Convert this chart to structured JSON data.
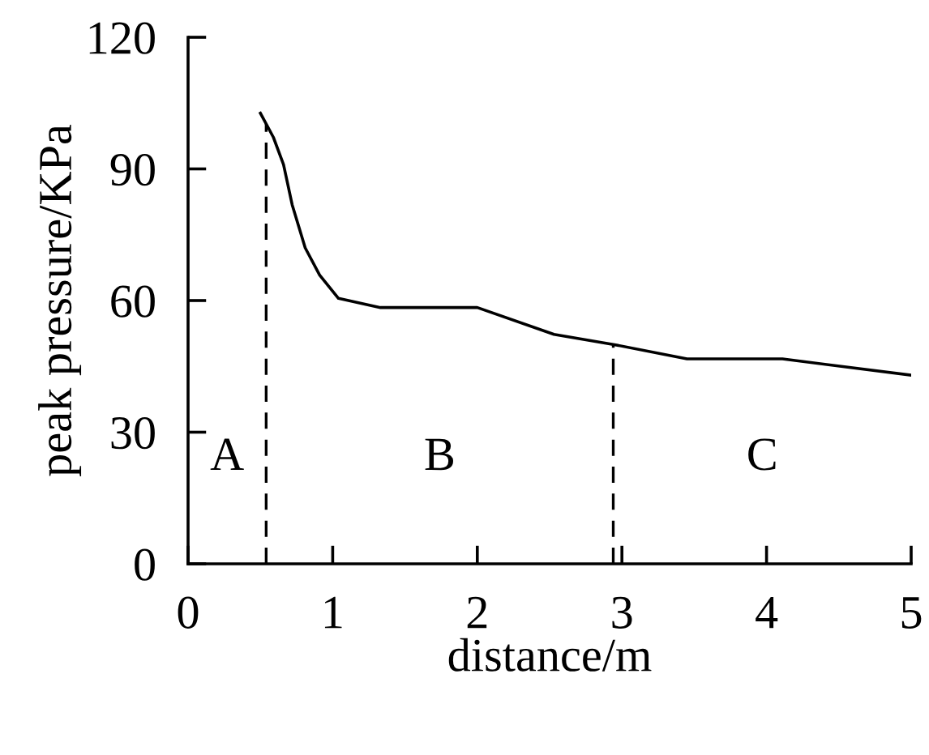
{
  "chart_data": {
    "type": "line",
    "xlabel": "distance/m",
    "ylabel": "peak pressure/KPa",
    "x": [
      0.5,
      0.59,
      0.66,
      0.72,
      0.81,
      0.91,
      1.04,
      1.33,
      2.0,
      2.53,
      2.94,
      3.45,
      4.11,
      5.0
    ],
    "series": [
      {
        "color": "#000000",
        "values": [
          102.7,
          97.2,
          91,
          81.8,
          72,
          65.8,
          60.5,
          58.4,
          58.4,
          52.3,
          50,
          46.7,
          46.7,
          43
        ]
      }
    ],
    "xlim": [
      0,
      5
    ],
    "xticks": [
      0,
      1,
      2,
      3,
      4,
      5
    ],
    "ylim": [
      0,
      120
    ],
    "yticks": [
      0,
      30,
      60,
      90,
      120
    ],
    "ref_lines": [
      {
        "axis": "x",
        "value": 0.54,
        "color": "#000000",
        "line_style": "dashed"
      },
      {
        "axis": "x",
        "value": 2.94,
        "color": "#000000",
        "line_style": "dashed"
      }
    ],
    "annotations": [
      "A",
      "B",
      "C"
    ],
    "grid": false,
    "marker": "none",
    "line_style": "solid"
  }
}
